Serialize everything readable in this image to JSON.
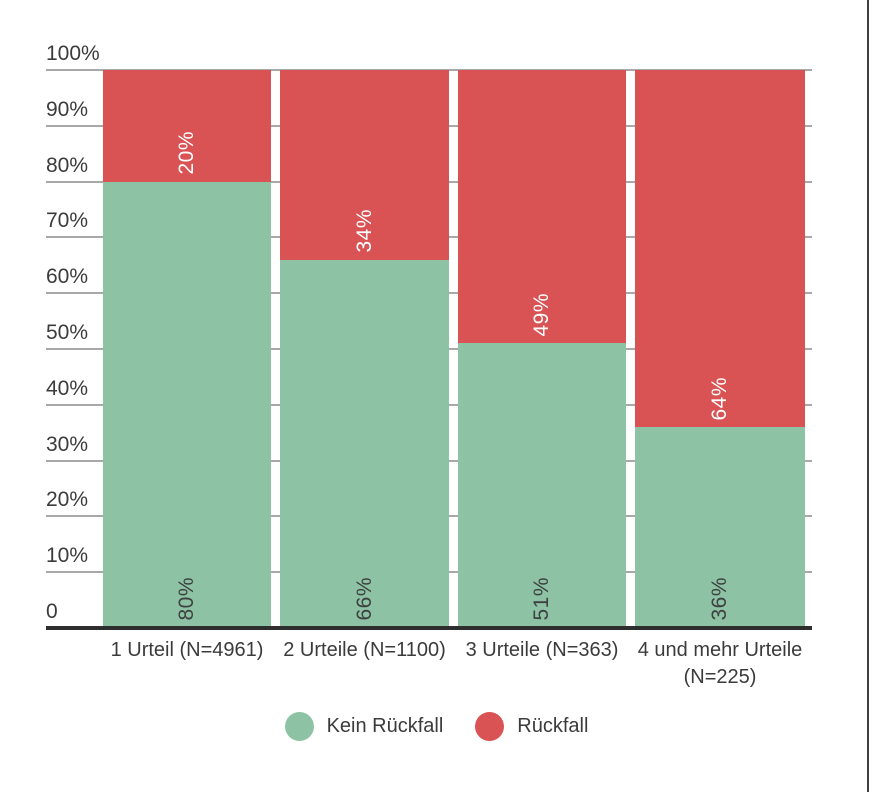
{
  "chart_data": {
    "type": "bar",
    "stacked": true,
    "orientation": "vertical",
    "title": "",
    "xlabel": "",
    "ylabel": "",
    "categories": [
      "1 Urteil (N=4961)",
      "2 Urteile (N=1100)",
      "3 Urteile (N=363)",
      "4 und mehr Urteile (N=225)"
    ],
    "series": [
      {
        "name": "Kein Rückfall",
        "color": "#8dc3a4",
        "label_color": "#3d4040",
        "values": [
          80,
          66,
          51,
          36
        ],
        "labels": [
          "80%",
          "66%",
          "51%",
          "36%"
        ]
      },
      {
        "name": "Rückfall",
        "color": "#d95254",
        "label_color": "#ffffff",
        "values": [
          20,
          34,
          49,
          64
        ],
        "labels": [
          "20%",
          "34%",
          "49%",
          "64%"
        ]
      }
    ],
    "y_axis": {
      "min": 0,
      "max": 100,
      "ticks": [
        "100%",
        "90%",
        "80%",
        "70%",
        "60%",
        "50%",
        "40%",
        "30%",
        "20%",
        "10%",
        "0"
      ]
    },
    "grid": true,
    "legend_position": "bottom"
  },
  "colors": {
    "grid": "#a8a8a8",
    "axis": "#2e2e2e",
    "text": "#3b3b3b",
    "background": "#ffffff",
    "frame_right": "#3f3f3f"
  }
}
